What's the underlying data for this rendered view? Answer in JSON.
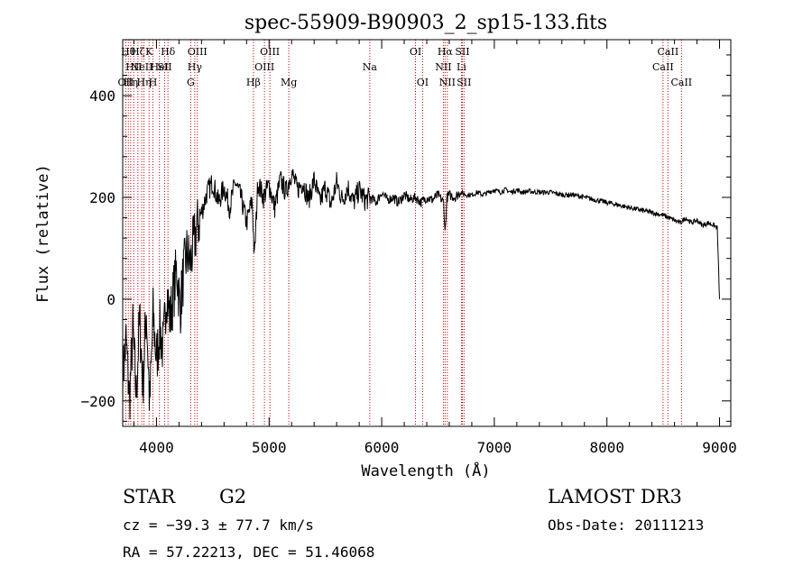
{
  "chart_data": {
    "type": "line",
    "title": "spec-55909-B90903_2_sp15-133.fits",
    "xlabel": "Wavelength (Å)",
    "ylabel": "Flux (relative)",
    "xlim": [
      3700,
      9100
    ],
    "ylim": [
      -250,
      510
    ],
    "x_ticks": [
      4000,
      5000,
      6000,
      7000,
      8000,
      9000
    ],
    "y_ticks": [
      -200,
      0,
      200,
      400
    ],
    "line_color": "#000000",
    "marker_color": "#c00000",
    "series": [
      {
        "name": "flux",
        "x": [
          3700,
          3730,
          3760,
          3790,
          3820,
          3850,
          3880,
          3910,
          3940,
          3970,
          4000,
          4030,
          4060,
          4090,
          4120,
          4150,
          4180,
          4210,
          4240,
          4270,
          4300,
          4330,
          4360,
          4400,
          4450,
          4500,
          4550,
          4600,
          4650,
          4700,
          4750,
          4800,
          4850,
          4870,
          4900,
          4950,
          5000,
          5050,
          5100,
          5150,
          5200,
          5250,
          5300,
          5350,
          5400,
          5450,
          5500,
          5550,
          5600,
          5650,
          5700,
          5750,
          5800,
          5850,
          5900,
          5950,
          6000,
          6050,
          6100,
          6150,
          6200,
          6250,
          6300,
          6350,
          6400,
          6450,
          6500,
          6550,
          6563,
          6580,
          6600,
          6650,
          6700,
          6750,
          6800,
          6850,
          6900,
          6950,
          7000,
          7050,
          7100,
          7150,
          7200,
          7250,
          7300,
          7400,
          7500,
          7600,
          7700,
          7800,
          7900,
          8000,
          8100,
          8200,
          8300,
          8400,
          8500,
          8550,
          8600,
          8650,
          8700,
          8750,
          8800,
          8850,
          8900,
          8950,
          8980,
          9000
        ],
        "y": [
          -150,
          -80,
          -200,
          -60,
          -190,
          -40,
          -170,
          -20,
          -210,
          -30,
          -120,
          -60,
          -100,
          20,
          -40,
          10,
          60,
          -20,
          50,
          90,
          70,
          110,
          140,
          170,
          210,
          230,
          190,
          220,
          180,
          230,
          200,
          150,
          195,
          80,
          230,
          200,
          225,
          180,
          235,
          210,
          250,
          215,
          230,
          195,
          235,
          190,
          220,
          185,
          230,
          195,
          220,
          190,
          215,
          195,
          200,
          190,
          210,
          195,
          200,
          190,
          205,
          195,
          200,
          190,
          200,
          195,
          205,
          190,
          130,
          200,
          205,
          200,
          210,
          205,
          205,
          210,
          205,
          210,
          215,
          210,
          215,
          210,
          215,
          210,
          212,
          210,
          210,
          205,
          205,
          200,
          195,
          190,
          185,
          180,
          175,
          170,
          165,
          160,
          155,
          150,
          160,
          150,
          155,
          145,
          150,
          145,
          140,
          0
        ]
      }
    ],
    "line_markers": [
      {
        "x": 3727,
        "label": "OII",
        "row": 3
      },
      {
        "x": 3750,
        "label": "Hθ",
        "row": 1
      },
      {
        "x": 3771,
        "label": "Hη",
        "row": 3
      },
      {
        "x": 3798,
        "label": "HII",
        "row": 2
      },
      {
        "x": 3835,
        "label": "Hζ",
        "row": 1
      },
      {
        "x": 3869,
        "label": "NeII",
        "row": 2
      },
      {
        "x": 3889,
        "label": "Hη",
        "row": 3
      },
      {
        "x": 3934,
        "label": "K",
        "row": 1
      },
      {
        "x": 3969,
        "label": "H",
        "row": 3
      },
      {
        "x": 4026,
        "label": "HeI",
        "row": 2
      },
      {
        "x": 4072,
        "label": "SII",
        "row": 2
      },
      {
        "x": 4102,
        "label": "Hδ",
        "row": 1
      },
      {
        "x": 4304,
        "label": "G",
        "row": 3
      },
      {
        "x": 4340,
        "label": "Hγ",
        "row": 2
      },
      {
        "x": 4363,
        "label": "OIII",
        "row": 1
      },
      {
        "x": 4861,
        "label": "Hβ",
        "row": 3
      },
      {
        "x": 4959,
        "label": "OIII",
        "row": 2
      },
      {
        "x": 5007,
        "label": "OIII",
        "row": 1
      },
      {
        "x": 5175,
        "label": "Mg",
        "row": 3
      },
      {
        "x": 5894,
        "label": "Na",
        "row": 2
      },
      {
        "x": 6300,
        "label": "OI",
        "row": 1
      },
      {
        "x": 6363,
        "label": "OI",
        "row": 3
      },
      {
        "x": 6548,
        "label": "NII",
        "row": 2
      },
      {
        "x": 6563,
        "label": "Hα",
        "row": 1
      },
      {
        "x": 6583,
        "label": "NII",
        "row": 3
      },
      {
        "x": 6708,
        "label": "Li",
        "row": 2
      },
      {
        "x": 6716,
        "label": "SII",
        "row": 1
      },
      {
        "x": 6731,
        "label": "SII",
        "row": 3
      },
      {
        "x": 8498,
        "label": "CaII",
        "row": 2
      },
      {
        "x": 8542,
        "label": "CaII",
        "row": 1
      },
      {
        "x": 8662,
        "label": "CaII",
        "row": 3
      }
    ]
  },
  "info": {
    "class_label": "STAR",
    "subclass_label": "G2",
    "cz_text": "cz = −39.3 ± 77.7 km/s",
    "radec_text": "RA =  57.22213, DEC =  51.46068",
    "survey": "LAMOST DR3",
    "obs_date": "Obs-Date: 20111213"
  }
}
